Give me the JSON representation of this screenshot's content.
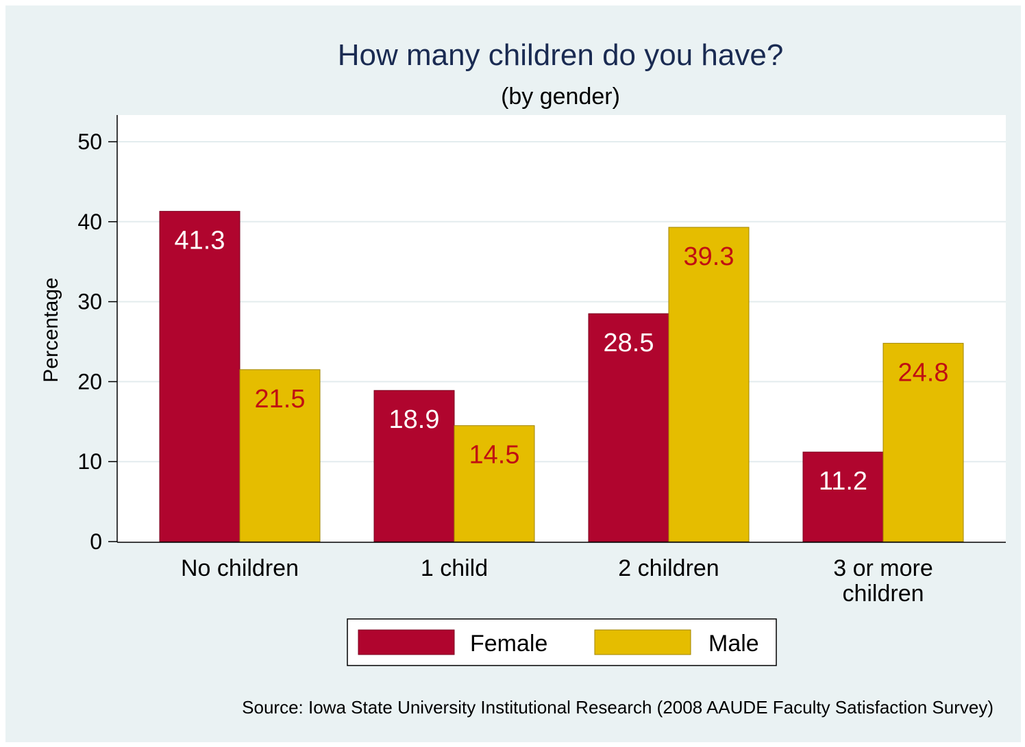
{
  "chart_data": {
    "type": "bar",
    "title": "How many children do you have?",
    "subtitle": "(by gender)",
    "xlabel": "",
    "ylabel": "Percentage",
    "ylim": [
      0,
      53
    ],
    "yticks": [
      "0",
      "10",
      "20",
      "30",
      "40",
      "50"
    ],
    "categories": [
      [
        "No children"
      ],
      [
        "1 child"
      ],
      [
        "2 children"
      ],
      [
        "3 or more",
        "children"
      ]
    ],
    "series": [
      {
        "name": "Female",
        "values": [
          41.3,
          18.9,
          28.5,
          11.2
        ],
        "color": "#b0052e",
        "label_color": "#ffffff"
      },
      {
        "name": "Male",
        "values": [
          21.5,
          14.5,
          39.3,
          24.8
        ],
        "color": "#e5bd00",
        "label_color": "#c00f12"
      }
    ],
    "data_labels": [
      [
        "41.3",
        "18.9",
        "28.5",
        "11.2"
      ],
      [
        "21.5",
        "14.5",
        "39.3",
        "24.8"
      ]
    ],
    "legend": {
      "position": "bottom",
      "entries": [
        "Female",
        "Male"
      ]
    },
    "grid": true,
    "background_color": "#eaf2f3",
    "plot_background_color": "#ffffff",
    "title_color": "#1a2b52"
  },
  "source_note": "Source:  Iowa State University Institutional Research (2008 AAUDE Faculty Satisfaction Survey)"
}
